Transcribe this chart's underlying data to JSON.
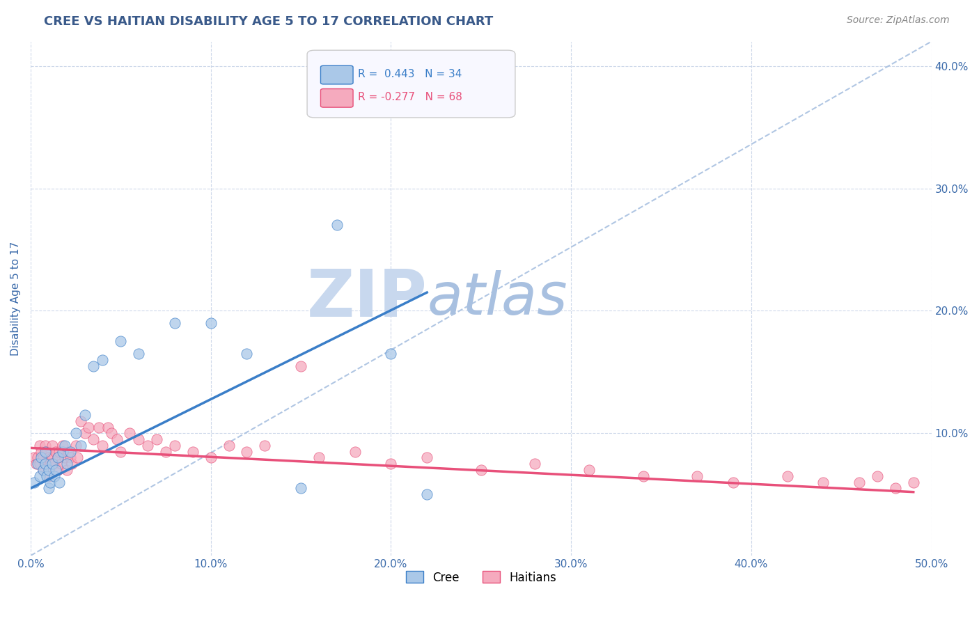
{
  "title": "CREE VS HAITIAN DISABILITY AGE 5 TO 17 CORRELATION CHART",
  "source": "Source: ZipAtlas.com",
  "ylabel": "Disability Age 5 to 17",
  "xlim": [
    0.0,
    0.5
  ],
  "ylim": [
    0.0,
    0.42
  ],
  "xticks": [
    0.0,
    0.1,
    0.2,
    0.3,
    0.4,
    0.5
  ],
  "yticks": [
    0.1,
    0.2,
    0.3,
    0.4
  ],
  "xticklabels": [
    "0.0%",
    "10.0%",
    "20.0%",
    "30.0%",
    "40.0%",
    "50.0%"
  ],
  "yticklabels": [
    "10.0%",
    "20.0%",
    "30.0%",
    "40.0%"
  ],
  "cree_R": 0.443,
  "cree_N": 34,
  "haitian_R": -0.277,
  "haitian_N": 68,
  "cree_color": "#aac8e8",
  "haitian_color": "#f5aabe",
  "cree_line_color": "#3a7ec8",
  "haitian_line_color": "#e8507a",
  "diag_line_color": "#a8c0e0",
  "background_color": "#ffffff",
  "grid_color": "#c8d4e8",
  "title_color": "#3a5a8a",
  "axis_label_color": "#3a6aaa",
  "watermark_zip_color": "#c8d8ee",
  "watermark_atlas_color": "#a8c0e0",
  "cree_x": [
    0.002,
    0.004,
    0.005,
    0.006,
    0.007,
    0.008,
    0.008,
    0.009,
    0.01,
    0.01,
    0.011,
    0.012,
    0.013,
    0.014,
    0.015,
    0.016,
    0.018,
    0.019,
    0.02,
    0.022,
    0.025,
    0.028,
    0.03,
    0.035,
    0.04,
    0.05,
    0.06,
    0.08,
    0.1,
    0.12,
    0.15,
    0.17,
    0.2,
    0.22
  ],
  "cree_y": [
    0.06,
    0.075,
    0.065,
    0.08,
    0.07,
    0.075,
    0.085,
    0.065,
    0.055,
    0.07,
    0.06,
    0.075,
    0.065,
    0.07,
    0.08,
    0.06,
    0.085,
    0.09,
    0.075,
    0.085,
    0.1,
    0.09,
    0.115,
    0.155,
    0.16,
    0.175,
    0.165,
    0.19,
    0.19,
    0.165,
    0.055,
    0.27,
    0.165,
    0.05
  ],
  "haitian_x": [
    0.002,
    0.003,
    0.004,
    0.005,
    0.005,
    0.006,
    0.007,
    0.007,
    0.008,
    0.008,
    0.009,
    0.01,
    0.01,
    0.011,
    0.012,
    0.012,
    0.013,
    0.014,
    0.015,
    0.015,
    0.016,
    0.017,
    0.018,
    0.019,
    0.02,
    0.021,
    0.022,
    0.023,
    0.025,
    0.026,
    0.028,
    0.03,
    0.032,
    0.035,
    0.038,
    0.04,
    0.043,
    0.045,
    0.048,
    0.05,
    0.055,
    0.06,
    0.065,
    0.07,
    0.075,
    0.08,
    0.09,
    0.1,
    0.11,
    0.12,
    0.13,
    0.15,
    0.16,
    0.18,
    0.2,
    0.22,
    0.25,
    0.28,
    0.31,
    0.34,
    0.37,
    0.39,
    0.42,
    0.44,
    0.46,
    0.47,
    0.48,
    0.49
  ],
  "haitian_y": [
    0.08,
    0.075,
    0.08,
    0.09,
    0.075,
    0.085,
    0.08,
    0.07,
    0.09,
    0.075,
    0.085,
    0.08,
    0.065,
    0.075,
    0.09,
    0.08,
    0.075,
    0.085,
    0.07,
    0.08,
    0.085,
    0.075,
    0.09,
    0.08,
    0.07,
    0.085,
    0.08,
    0.075,
    0.09,
    0.08,
    0.11,
    0.1,
    0.105,
    0.095,
    0.105,
    0.09,
    0.105,
    0.1,
    0.095,
    0.085,
    0.1,
    0.095,
    0.09,
    0.095,
    0.085,
    0.09,
    0.085,
    0.08,
    0.09,
    0.085,
    0.09,
    0.155,
    0.08,
    0.085,
    0.075,
    0.08,
    0.07,
    0.075,
    0.07,
    0.065,
    0.065,
    0.06,
    0.065,
    0.06,
    0.06,
    0.065,
    0.055,
    0.06
  ]
}
